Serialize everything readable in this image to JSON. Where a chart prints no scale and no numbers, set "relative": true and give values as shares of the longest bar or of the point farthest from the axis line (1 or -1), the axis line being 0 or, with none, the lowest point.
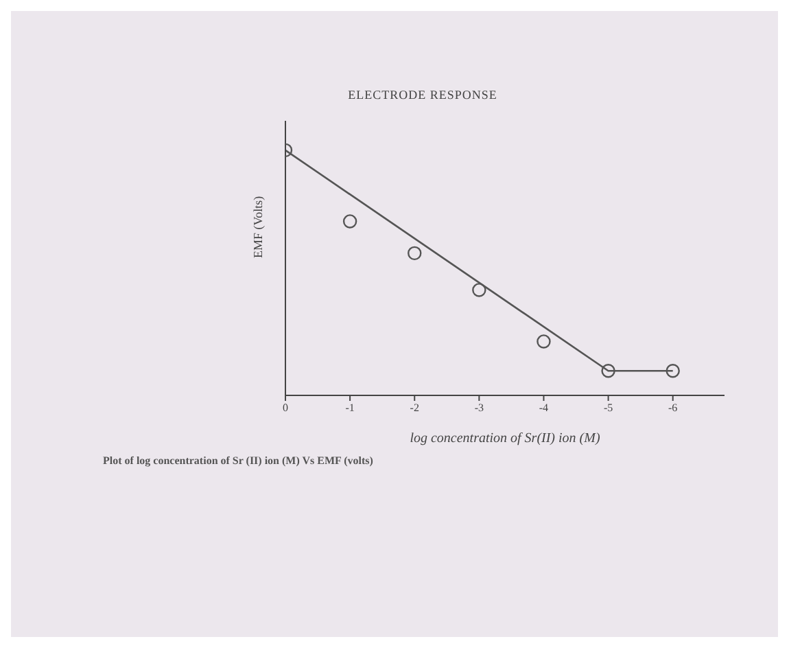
{
  "chart_data": {
    "type": "scatter",
    "title": "ELECTRODE RESPONSE",
    "xlabel": "log concentration of Sr(II) ion (M)",
    "ylabel": "EMF (Volts)",
    "annotations": [
      "Plot of log concentration of Sr (II) ion (M) Vs EMF (volts)"
    ],
    "x": [
      0,
      -1,
      -2,
      -3,
      -4,
      -5,
      -6
    ],
    "xlim": [
      0,
      -6.8
    ],
    "xticks": [
      0,
      -1,
      -2,
      -3,
      -4,
      -5,
      -6
    ],
    "relative": true,
    "grid": false,
    "series": [
      {
        "color": "#555555",
        "marker": "circle",
        "values": [
          1,
          0.71,
          0.58,
          0.43,
          0.22,
          0.1,
          0.1
        ]
      },
      {
        "type": "line",
        "color": "#555555",
        "marker": "none",
        "line_style": "solid",
        "x": [
          0,
          -5,
          -6
        ],
        "values": [
          1,
          0.1,
          0.1
        ]
      }
    ]
  }
}
